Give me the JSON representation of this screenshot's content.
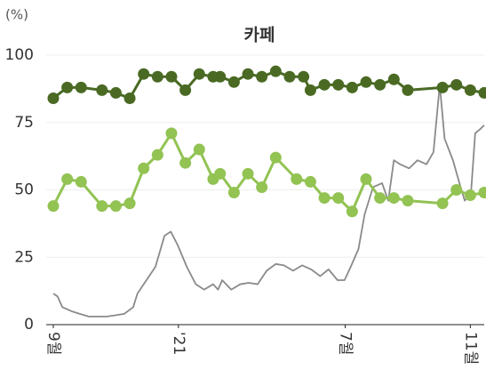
{
  "chart_data": {
    "type": "line",
    "title": "카페",
    "y_label": "(%)",
    "xlim": [
      0,
      62
    ],
    "xticks": [
      {
        "value": 0,
        "label": "9월"
      },
      {
        "value": 18,
        "label": "'21"
      },
      {
        "value": 42,
        "label": "7월"
      },
      {
        "value": 60,
        "label": "11월"
      }
    ],
    "ylim": [
      0,
      100
    ],
    "yticks": [
      0,
      25,
      50,
      75,
      100
    ],
    "grid": true,
    "series": [
      {
        "color": "#4a6a24",
        "markers": true,
        "x": [
          0,
          2,
          4,
          7,
          9,
          11,
          13,
          15,
          17,
          19,
          21,
          23,
          24,
          26,
          28,
          30,
          32,
          34,
          36,
          37,
          39,
          41,
          43,
          45,
          47,
          49,
          51,
          56,
          58,
          60,
          62
        ],
        "values": [
          84,
          88,
          88,
          87,
          86,
          84,
          93,
          92,
          92,
          87,
          93,
          92,
          92,
          90,
          93,
          92,
          94,
          92,
          92,
          87,
          89,
          89,
          88,
          90,
          89,
          91,
          87,
          88,
          89,
          87,
          86
        ]
      },
      {
        "color": "#92c353",
        "markers": true,
        "x": [
          0,
          2,
          4,
          7,
          9,
          11,
          13,
          15,
          17,
          19,
          21,
          23,
          24,
          26,
          28,
          30,
          32,
          35,
          37,
          39,
          41,
          43,
          45,
          47,
          49,
          51,
          56,
          58,
          60,
          62
        ],
        "values": [
          44,
          54,
          53,
          44,
          44,
          45,
          58,
          63,
          71,
          60,
          65,
          54,
          56,
          49,
          56,
          51,
          62,
          54,
          53,
          47,
          47,
          42,
          54,
          47,
          47,
          46,
          45,
          50,
          48,
          49
        ]
      },
      {
        "color": "#8a8a8a",
        "markers": false,
        "x": [
          0,
          0.6,
          1.3,
          2.6,
          3.8,
          5.1,
          6.4,
          7.7,
          9.0,
          10.2,
          11.5,
          12.1,
          13.4,
          14.7,
          16.0,
          16.9,
          17.9,
          19.2,
          20.5,
          21.7,
          23.0,
          23.7,
          24.3,
          25.6,
          26.9,
          28.1,
          29.4,
          30.7,
          32.0,
          33.2,
          34.5,
          35.8,
          37.1,
          38.4,
          39.6,
          40.9,
          41.9,
          42.8,
          43.9,
          44.8,
          46.0,
          47.3,
          48.2,
          49.0,
          49.9,
          51.2,
          52.4,
          53.7,
          54.7,
          55.6,
          56.3,
          57.5,
          58.6,
          59.2,
          60.1,
          60.7,
          61.4,
          62.0
        ],
        "values": [
          11.5,
          10.5,
          6.5,
          5,
          4,
          3,
          3,
          3,
          3.5,
          4,
          6.5,
          11.5,
          16.5,
          21.5,
          33,
          34.5,
          29.5,
          21.5,
          15,
          13,
          15,
          13,
          16.5,
          13,
          15,
          15.5,
          15,
          20,
          22.5,
          22,
          20,
          22,
          20.5,
          18,
          20.5,
          16.5,
          16.5,
          21.5,
          28,
          41,
          51,
          52.5,
          46,
          61,
          59.5,
          58,
          61,
          59.5,
          64,
          89,
          69,
          61,
          51,
          46,
          49,
          71,
          72.5,
          74
        ]
      }
    ]
  }
}
